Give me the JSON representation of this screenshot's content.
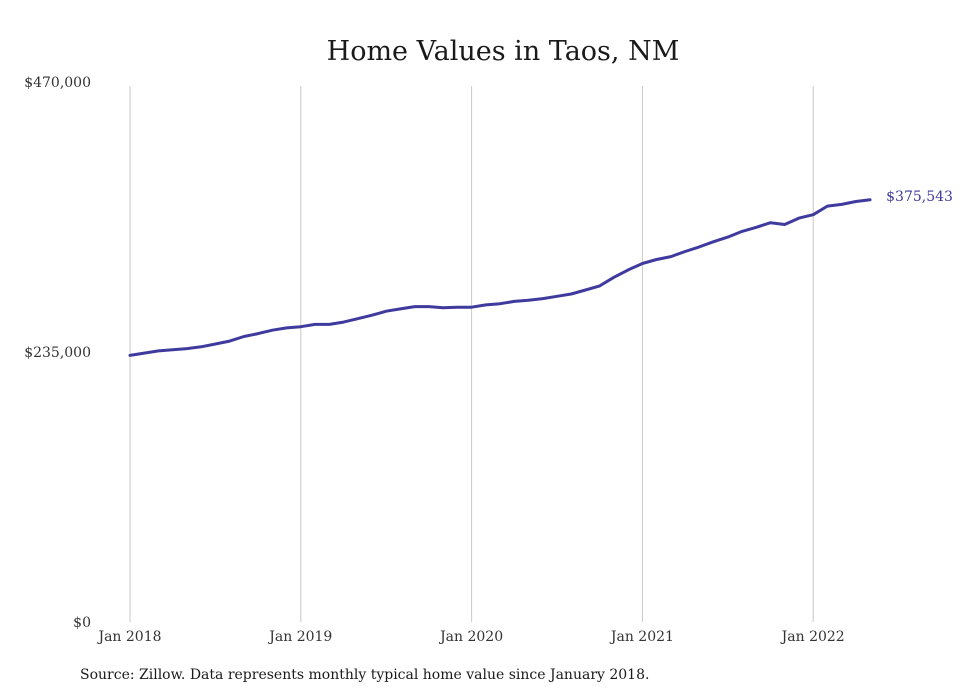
{
  "chart_data": {
    "type": "line",
    "title": "Home Values in Taos, NM",
    "xlabel": "",
    "ylabel": "",
    "x_ticks": [
      "Jan 2018",
      "Jan 2019",
      "Jan 2020",
      "Jan 2021",
      "Jan 2022"
    ],
    "y_ticks": [
      {
        "value": 0,
        "label": "$0"
      },
      {
        "value": 235000,
        "label": "$235,000"
      },
      {
        "value": 470000,
        "label": "$470,000"
      }
    ],
    "ylim": [
      0,
      470000
    ],
    "grid": "vertical at x ticks",
    "series": [
      {
        "color": "#3f3a9e",
        "x": [
          "2018-01",
          "2018-02",
          "2018-03",
          "2018-04",
          "2018-05",
          "2018-06",
          "2018-07",
          "2018-08",
          "2018-09",
          "2018-10",
          "2018-11",
          "2018-12",
          "2019-01",
          "2019-02",
          "2019-03",
          "2019-04",
          "2019-05",
          "2019-06",
          "2019-07",
          "2019-08",
          "2019-09",
          "2019-10",
          "2019-11",
          "2019-12",
          "2020-01",
          "2020-02",
          "2020-03",
          "2020-04",
          "2020-05",
          "2020-06",
          "2020-07",
          "2020-08",
          "2020-09",
          "2020-10",
          "2020-11",
          "2020-12",
          "2021-01",
          "2021-02",
          "2021-03",
          "2021-04",
          "2021-05",
          "2021-06",
          "2021-07",
          "2021-08",
          "2021-09",
          "2021-10",
          "2021-11",
          "2021-12",
          "2022-01",
          "2022-02",
          "2022-03",
          "2022-04",
          "2022-05"
        ],
        "values": [
          232000,
          234000,
          236000,
          237000,
          238000,
          239500,
          242000,
          244500,
          248500,
          251000,
          254000,
          256000,
          257000,
          259000,
          259000,
          261000,
          264000,
          267000,
          270500,
          272500,
          274500,
          274500,
          273500,
          274000,
          274000,
          276000,
          277000,
          279000,
          280000,
          281500,
          283500,
          285500,
          289000,
          292500,
          300000,
          306500,
          312000,
          315500,
          318000,
          322500,
          326500,
          331000,
          335000,
          340000,
          343500,
          347500,
          346000,
          351500,
          354500,
          362000,
          363500,
          366000,
          367500
        ],
        "end_label": "$375,543"
      }
    ]
  },
  "footer": {
    "source": "Source: Zillow. Data represents monthly typical home value since January 2018."
  }
}
